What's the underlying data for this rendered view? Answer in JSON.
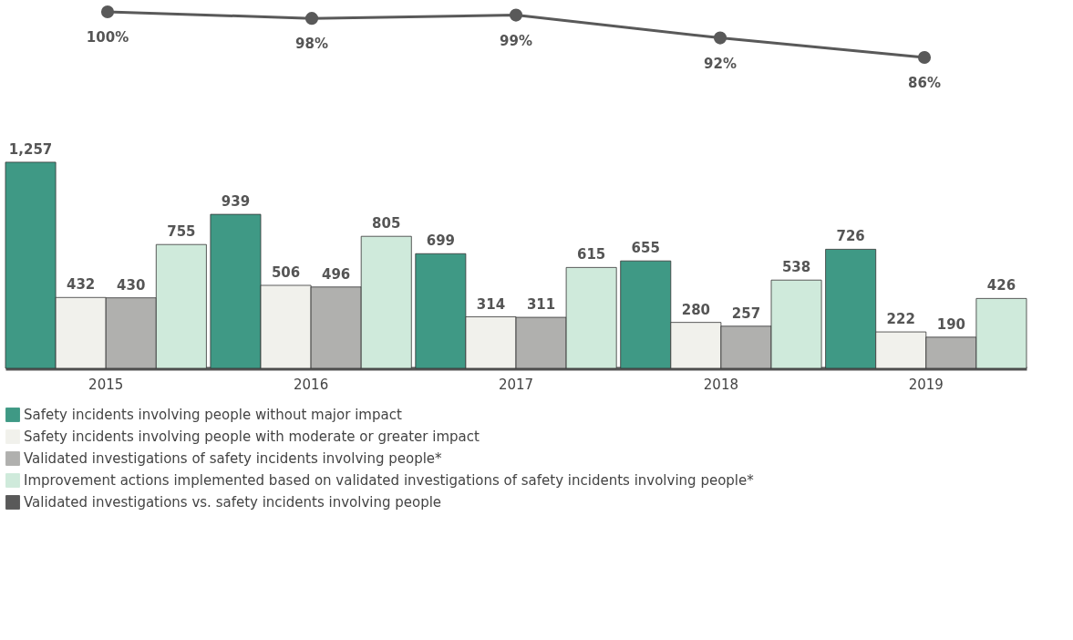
{
  "chart_data": [
    {
      "type": "line",
      "categories": [
        "2015",
        "2016",
        "2017",
        "2018",
        "2019"
      ],
      "series": [
        {
          "name": "Validated investigations vs. safety incidents involving people",
          "color": "#595959",
          "values": [
            100,
            98,
            99,
            92,
            86
          ],
          "value_labels": [
            "100%",
            "98%",
            "99%",
            "92%",
            "86%"
          ]
        }
      ],
      "marker": "circle",
      "tick_labels": false
    },
    {
      "type": "bar",
      "categories": [
        "2015",
        "2016",
        "2017",
        "2018",
        "2019"
      ],
      "series": [
        {
          "name": "Safety incidents involving people without major impact",
          "color": "#3f9985",
          "values": [
            1257,
            939,
            699,
            655,
            726
          ],
          "value_labels": [
            "1,257",
            "939",
            "699",
            "655",
            "726"
          ]
        },
        {
          "name": "Safety incidents involving people with moderate or greater impact",
          "color": "#f1f1ec",
          "values": [
            432,
            506,
            314,
            280,
            222
          ],
          "value_labels": [
            "432",
            "506",
            "314",
            "280",
            "222"
          ]
        },
        {
          "name": "Validated investigations of safety incidents involving people*",
          "color": "#b0b0ae",
          "values": [
            430,
            496,
            311,
            257,
            190
          ],
          "value_labels": [
            "430",
            "496",
            "311",
            "257",
            "190"
          ]
        },
        {
          "name": "Improvement actions implemented based on validated investigations of safety incidents involving people*",
          "color": "#cfeadb",
          "values": [
            755,
            805,
            615,
            538,
            426
          ],
          "value_labels": [
            "755",
            "805",
            "615",
            "538",
            "426"
          ]
        }
      ],
      "legend": "bottom",
      "grid": false,
      "tick_labels": "x"
    }
  ]
}
